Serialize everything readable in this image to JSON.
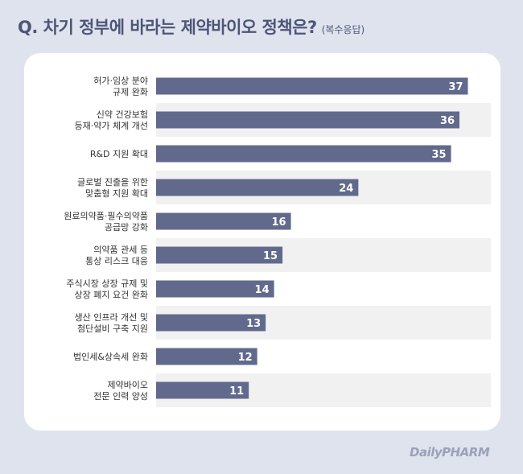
{
  "header": {
    "title": "Q. 차기 정부에 바라는 제약바이오 정책은?",
    "subtitle": "(복수응답)"
  },
  "logo_text": "DailyPHARM",
  "colors": {
    "background": "#dfe3ee",
    "bar": "#616a8c",
    "stripe": "#f1f1f1",
    "title": "#4d5577"
  },
  "chart_data": {
    "type": "bar",
    "orientation": "horizontal",
    "categories": [
      [
        "허가·임상 분야",
        "규제 완화"
      ],
      [
        "신약 건강보험",
        "등재·약가 체계 개선"
      ],
      [
        "R&D 지원 확대"
      ],
      [
        "글로벌 진출을 위한",
        "맞춤형 지원 확대"
      ],
      [
        "원료의약품·필수의약품",
        "공급망 강화"
      ],
      [
        "의약품 관세 등",
        "통상 리스크 대응"
      ],
      [
        "주식시장 상장 규제 및",
        "상장 폐지 요건 완화"
      ],
      [
        "생산 인프라 개선 및",
        "첨단설비 구축 지원"
      ],
      [
        "법인세&상속세 완화"
      ],
      [
        "제약바이오",
        "전문 인력 양성"
      ]
    ],
    "values": [
      37,
      36,
      35,
      24,
      16,
      15,
      14,
      13,
      12,
      11
    ],
    "xlim": [
      0,
      38
    ],
    "grid": false,
    "legend": "none"
  }
}
